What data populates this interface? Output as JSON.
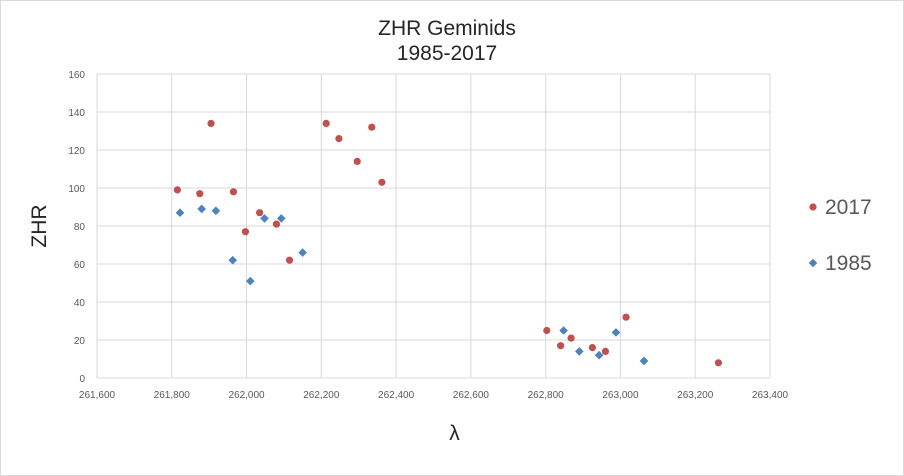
{
  "chart_data": {
    "type": "scatter",
    "title": "ZHR Geminids",
    "subtitle": "1985-2017",
    "xlabel": "λ",
    "ylabel": "ZHR",
    "xlim": [
      261600,
      263400
    ],
    "ylim": [
      0,
      160
    ],
    "x_ticks": [
      "261,600",
      "261,800",
      "262,000",
      "262,200",
      "262,400",
      "262,600",
      "262,800",
      "263,000",
      "263,200",
      "263,400"
    ],
    "y_ticks": [
      "0",
      "20",
      "40",
      "60",
      "80",
      "100",
      "120",
      "140",
      "160"
    ],
    "grid": true,
    "legend": "right",
    "series": [
      {
        "name": "2017",
        "marker": "circle",
        "color": "#c0504d",
        "points": [
          [
            261815,
            99
          ],
          [
            261875,
            97
          ],
          [
            261905,
            134
          ],
          [
            261965,
            98
          ],
          [
            261997,
            77
          ],
          [
            262035,
            87
          ],
          [
            262080,
            81
          ],
          [
            262115,
            62
          ],
          [
            262213,
            134
          ],
          [
            262247,
            126
          ],
          [
            262296,
            114
          ],
          [
            262335,
            132
          ],
          [
            262362,
            103
          ],
          [
            262803,
            25
          ],
          [
            262840,
            17
          ],
          [
            262868,
            21
          ],
          [
            262925,
            16
          ],
          [
            262960,
            14
          ],
          [
            263015,
            32
          ],
          [
            263262,
            8
          ]
        ]
      },
      {
        "name": "1985",
        "marker": "diamond",
        "color": "#4f81bd",
        "points": [
          [
            261822,
            87
          ],
          [
            261880,
            89
          ],
          [
            261918,
            88
          ],
          [
            261963,
            62
          ],
          [
            262010,
            51
          ],
          [
            262048,
            84
          ],
          [
            262093,
            84
          ],
          [
            262150,
            66
          ],
          [
            262848,
            25
          ],
          [
            262890,
            14
          ],
          [
            262943,
            12
          ],
          [
            262988,
            24
          ],
          [
            263063,
            9
          ]
        ]
      }
    ]
  }
}
